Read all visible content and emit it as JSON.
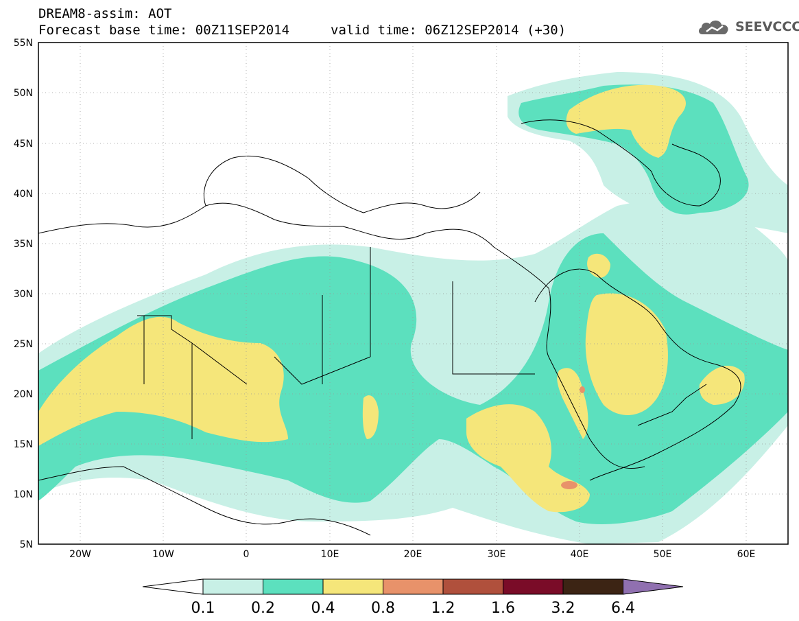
{
  "header": {
    "title": "DREAM8-assim: AOT",
    "base_time": "Forecast base time: 00Z11SEP2014",
    "valid_time": "valid time: 06Z12SEP2014 (+30)"
  },
  "logo": {
    "text": "SEEVCCC",
    "icon": "cloud-icon"
  },
  "map": {
    "lat_labels": [
      "55N",
      "50N",
      "45N",
      "40N",
      "35N",
      "30N",
      "25N",
      "20N",
      "15N",
      "10N",
      "5N"
    ],
    "lon_labels": [
      "20W",
      "10W",
      "0",
      "10E",
      "20E",
      "30E",
      "40E",
      "50E",
      "60E"
    ],
    "extent": {
      "lon_min": -25,
      "lon_max": 65,
      "lat_min": 5,
      "lat_max": 55
    }
  },
  "legend": {
    "levels": [
      "0.1",
      "0.2",
      "0.4",
      "0.8",
      "1.2",
      "1.6",
      "3.2",
      "6.4"
    ],
    "colors": [
      "#ffffff",
      "#c8f0e6",
      "#5ce0be",
      "#f5e67a",
      "#e8926a",
      "#b0503c",
      "#7a0c28",
      "#3c2414",
      "#9070b0"
    ]
  },
  "colors": {
    "c01": "#c8f0e6",
    "c02": "#5ce0be",
    "c04": "#f5e67a",
    "c08": "#e8926a"
  }
}
